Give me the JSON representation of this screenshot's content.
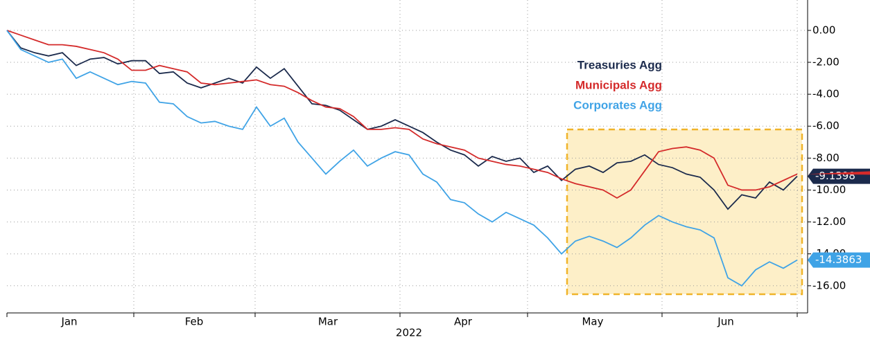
{
  "chart_data": {
    "type": "line",
    "x_labels": [
      "Jan",
      "Feb",
      "Mar",
      "Apr",
      "May",
      "Jun"
    ],
    "x_axis_label": "2022",
    "ylim": [
      -17.7,
      1.6
    ],
    "yticks": [
      {
        "value": 0,
        "label": "0.00"
      },
      {
        "value": -2,
        "label": "-2.00"
      },
      {
        "value": -4,
        "label": "-4.00"
      },
      {
        "value": -6,
        "label": "-6.00"
      },
      {
        "value": -8,
        "label": "-8.00"
      },
      {
        "value": -10,
        "label": "-10.00"
      },
      {
        "value": -12,
        "label": "-12.00"
      },
      {
        "value": -14,
        "label": "-14.00"
      },
      {
        "value": -16,
        "label": "-16.00"
      }
    ],
    "grid": true,
    "series": [
      {
        "name": "Treasuries Agg",
        "color": "#1b2a4c",
        "end_label": true,
        "values": [
          0,
          -1.1,
          -1.4,
          -1.6,
          -1.4,
          -2.2,
          -1.8,
          -1.7,
          -2.1,
          -1.9,
          -1.9,
          -2.7,
          -2.6,
          -3.3,
          -3.6,
          -3.3,
          -3.0,
          -3.3,
          -2.3,
          -3.0,
          -2.4,
          -3.5,
          -4.6,
          -4.7,
          -5.0,
          -5.6,
          -6.2,
          -6.0,
          -5.6,
          -6.0,
          -6.4,
          -7.0,
          -7.5,
          -7.8,
          -8.5,
          -7.9,
          -8.2,
          -8.0,
          -8.9,
          -8.5,
          -9.4,
          -8.7,
          -8.5,
          -8.9,
          -8.3,
          -8.2,
          -7.8,
          -8.4,
          -8.6,
          -9.0,
          -9.2,
          -10.0,
          -11.2,
          -10.3,
          -10.5,
          -9.5,
          -10.0,
          -9.1398
        ]
      },
      {
        "name": "Municipals Agg",
        "color": "#d42a2a",
        "end_label": false,
        "values": [
          0,
          -0.3,
          -0.6,
          -0.9,
          -0.9,
          -1.0,
          -1.2,
          -1.4,
          -1.8,
          -2.5,
          -2.5,
          -2.2,
          -2.4,
          -2.6,
          -3.3,
          -3.4,
          -3.3,
          -3.2,
          -3.1,
          -3.4,
          -3.5,
          -3.9,
          -4.4,
          -4.8,
          -4.9,
          -5.4,
          -6.2,
          -6.2,
          -6.1,
          -6.2,
          -6.8,
          -7.1,
          -7.3,
          -7.5,
          -8.0,
          -8.2,
          -8.4,
          -8.5,
          -8.7,
          -8.9,
          -9.3,
          -9.6,
          -9.8,
          -10.0,
          -10.5,
          -10.0,
          -8.8,
          -7.6,
          -7.4,
          -7.3,
          -7.5,
          -8.0,
          -9.7,
          -10.0,
          -10.0,
          -9.8,
          -9.4,
          -9.0
        ]
      },
      {
        "name": "Corporates Agg",
        "color": "#3fa3e6",
        "end_label": true,
        "values": [
          0,
          -1.2,
          -1.6,
          -2.0,
          -1.8,
          -3.0,
          -2.6,
          -3.0,
          -3.4,
          -3.2,
          -3.3,
          -4.5,
          -4.6,
          -5.4,
          -5.8,
          -5.7,
          -6.0,
          -6.2,
          -4.8,
          -6.0,
          -5.5,
          -7.0,
          -8.0,
          -9.0,
          -8.2,
          -7.5,
          -8.5,
          -8.0,
          -7.6,
          -7.8,
          -9.0,
          -9.5,
          -10.6,
          -10.8,
          -11.5,
          -12.0,
          -11.4,
          -11.8,
          -12.2,
          -13.0,
          -14.0,
          -13.2,
          -12.9,
          -13.2,
          -13.6,
          -13.0,
          -12.2,
          -11.6,
          -12.0,
          -12.3,
          -12.5,
          -13.0,
          -15.5,
          -16.0,
          -15.0,
          -14.5,
          -14.9,
          -14.3863
        ]
      }
    ]
  }
}
